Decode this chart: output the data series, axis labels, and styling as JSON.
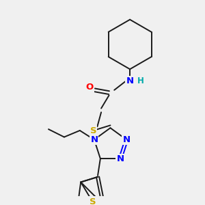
{
  "bg_color": "#f0f0f0",
  "fig_size": [
    3.0,
    3.0
  ],
  "dpi": 100,
  "colors": {
    "N": "#0000ff",
    "O": "#ff0000",
    "S": "#ccaa00",
    "C": "#000000",
    "H": "#00aaaa",
    "bond": "#1a1a1a"
  }
}
